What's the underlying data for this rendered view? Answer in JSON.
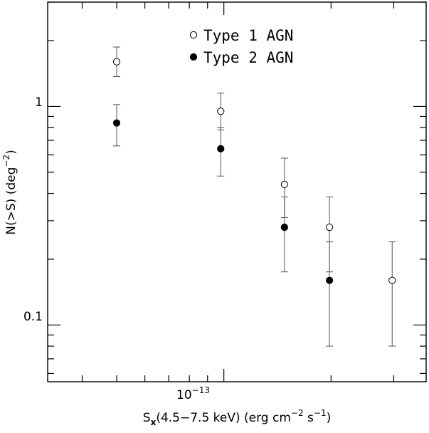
{
  "chart_data": {
    "type": "scatter",
    "xscale": "log",
    "yscale": "log",
    "xlim": [
      3.2e-14,
      3.7e-13
    ],
    "ylim": [
      0.055,
      3.0
    ],
    "grid": false,
    "legend": "top-center",
    "xlabel": {
      "prefix": "S",
      "sub": "x",
      "mid": "(4.5−7.5 keV) (erg cm",
      "exp1": "−2",
      "mid2": " s",
      "exp2": "−1",
      "suffix": ")"
    },
    "ylabel": {
      "main": "N(>S) (deg",
      "exp": "−2",
      "suffix": ")"
    },
    "x_tick_labels": [
      {
        "value": 1e-13,
        "base": "10",
        "exp": "−13"
      }
    ],
    "y_tick_labels": [
      {
        "value": 1,
        "label": "1"
      },
      {
        "value": 0.1,
        "label": "0.1"
      }
    ],
    "series": [
      {
        "name": "Type 1 AGN",
        "marker": "open-circle",
        "color": "#000000",
        "points": [
          {
            "x": 5e-14,
            "y": 1.6,
            "ylow": 1.37,
            "yhigh": 1.87
          },
          {
            "x": 9.8e-14,
            "y": 0.95,
            "ylow": 0.78,
            "yhigh": 1.15
          },
          {
            "x": 1.48e-13,
            "y": 0.44,
            "ylow": 0.31,
            "yhigh": 0.58
          },
          {
            "x": 1.98e-13,
            "y": 0.28,
            "ylow": 0.175,
            "yhigh": 0.385
          },
          {
            "x": 2.97e-13,
            "y": 0.16,
            "ylow": 0.08,
            "yhigh": 0.24
          }
        ]
      },
      {
        "name": "Type 2 AGN",
        "marker": "filled-circle",
        "color": "#000000",
        "points": [
          {
            "x": 5e-14,
            "y": 0.84,
            "ylow": 0.66,
            "yhigh": 1.02
          },
          {
            "x": 9.8e-14,
            "y": 0.64,
            "ylow": 0.48,
            "yhigh": 0.8
          },
          {
            "x": 1.48e-13,
            "y": 0.28,
            "ylow": 0.175,
            "yhigh": 0.385
          },
          {
            "x": 1.98e-13,
            "y": 0.16,
            "ylow": 0.08,
            "yhigh": 0.24
          }
        ]
      }
    ]
  }
}
